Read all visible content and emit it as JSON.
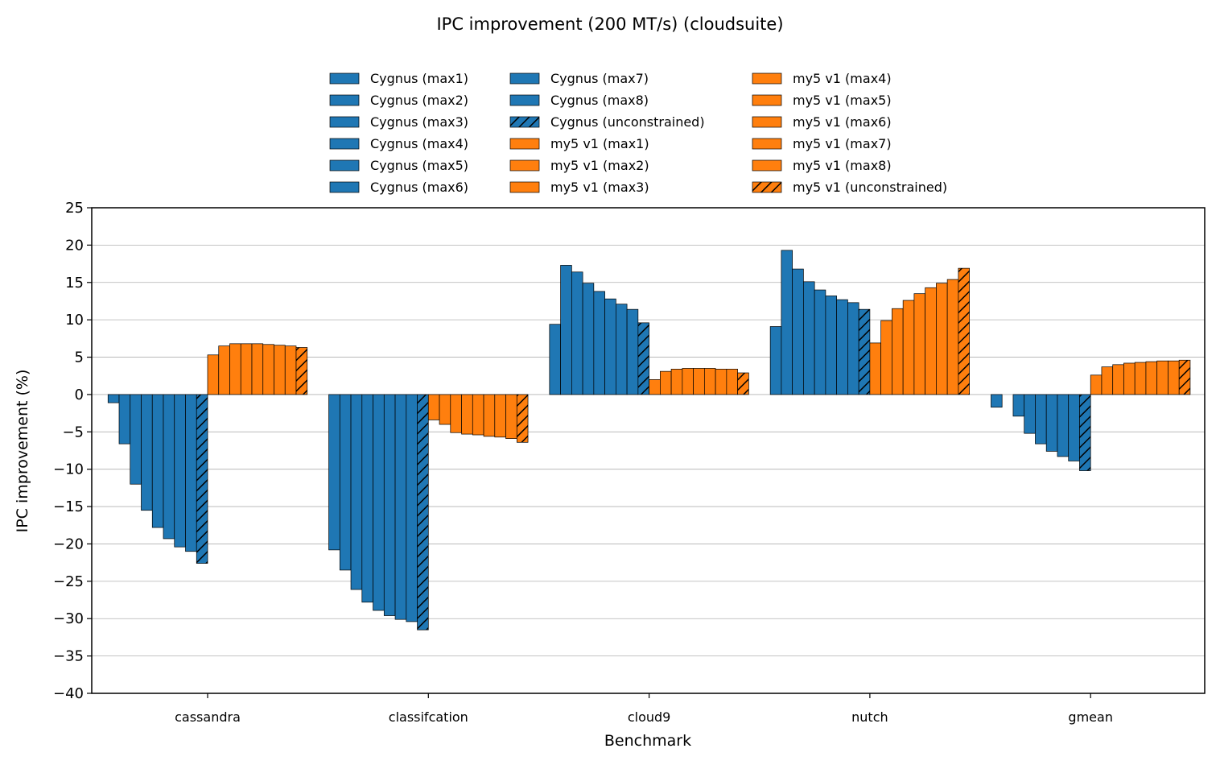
{
  "chart_data": {
    "type": "bar",
    "title": "IPC improvement (200 MT/s) (cloudsuite)",
    "xlabel": "Benchmark",
    "ylabel": "IPC improvement (%)",
    "ylim": [
      -40,
      25
    ],
    "yticks": [
      25,
      20,
      15,
      10,
      5,
      0,
      -5,
      -10,
      -15,
      -20,
      -25,
      -30,
      -35,
      -40
    ],
    "ytick_labels": [
      "25",
      "20",
      "15",
      "10",
      "5",
      "0",
      "−5",
      "−10",
      "−15",
      "−20",
      "−25",
      "−30",
      "−35",
      "−40"
    ],
    "grid": "horizontal",
    "legend_position": "top-center",
    "categories": [
      "cassandra",
      "classifcation",
      "cloud9",
      "nutch",
      "gmean"
    ],
    "colors": {
      "cygnus": "#1f77b4",
      "my5": "#ff7f0e"
    },
    "series": [
      {
        "name": "Cygnus (max1)",
        "group": "cygnus",
        "hatch": false,
        "values": [
          -1.1,
          -20.8,
          9.4,
          9.1,
          -1.7
        ]
      },
      {
        "name": "Cygnus (max2)",
        "group": "cygnus",
        "hatch": false,
        "values": [
          -6.6,
          -23.5,
          17.3,
          19.3,
          0.0
        ]
      },
      {
        "name": "Cygnus (max3)",
        "group": "cygnus",
        "hatch": false,
        "values": [
          -12.0,
          -26.1,
          16.4,
          16.8,
          -2.9
        ]
      },
      {
        "name": "Cygnus (max4)",
        "group": "cygnus",
        "hatch": false,
        "values": [
          -15.5,
          -27.8,
          14.9,
          15.1,
          -5.2
        ]
      },
      {
        "name": "Cygnus (max5)",
        "group": "cygnus",
        "hatch": false,
        "values": [
          -17.8,
          -28.9,
          13.8,
          14.0,
          -6.6
        ]
      },
      {
        "name": "Cygnus (max6)",
        "group": "cygnus",
        "hatch": false,
        "values": [
          -19.3,
          -29.6,
          12.8,
          13.2,
          -7.6
        ]
      },
      {
        "name": "Cygnus (max7)",
        "group": "cygnus",
        "hatch": false,
        "values": [
          -20.4,
          -30.1,
          12.1,
          12.7,
          -8.3
        ]
      },
      {
        "name": "Cygnus (max8)",
        "group": "cygnus",
        "hatch": false,
        "values": [
          -21.0,
          -30.4,
          11.4,
          12.3,
          -8.9
        ]
      },
      {
        "name": "Cygnus (unconstrained)",
        "group": "cygnus",
        "hatch": true,
        "values": [
          -22.6,
          -31.5,
          9.6,
          11.4,
          -10.2
        ]
      },
      {
        "name": "my5 v1 (max1)",
        "group": "my5",
        "hatch": false,
        "values": [
          5.3,
          -3.4,
          2.0,
          6.9,
          2.6
        ]
      },
      {
        "name": "my5 v1 (max2)",
        "group": "my5",
        "hatch": false,
        "values": [
          6.5,
          -4.0,
          3.1,
          9.9,
          3.7
        ]
      },
      {
        "name": "my5 v1 (max3)",
        "group": "my5",
        "hatch": false,
        "values": [
          6.8,
          -5.1,
          3.4,
          11.5,
          4.0
        ]
      },
      {
        "name": "my5 v1 (max4)",
        "group": "my5",
        "hatch": false,
        "values": [
          6.8,
          -5.3,
          3.5,
          12.6,
          4.2
        ]
      },
      {
        "name": "my5 v1 (max5)",
        "group": "my5",
        "hatch": false,
        "values": [
          6.8,
          -5.4,
          3.5,
          13.5,
          4.3
        ]
      },
      {
        "name": "my5 v1 (max6)",
        "group": "my5",
        "hatch": false,
        "values": [
          6.7,
          -5.6,
          3.5,
          14.3,
          4.4
        ]
      },
      {
        "name": "my5 v1 (max7)",
        "group": "my5",
        "hatch": false,
        "values": [
          6.6,
          -5.7,
          3.4,
          14.9,
          4.5
        ]
      },
      {
        "name": "my5 v1 (max8)",
        "group": "my5",
        "hatch": false,
        "values": [
          6.5,
          -5.9,
          3.4,
          15.4,
          4.5
        ]
      },
      {
        "name": "my5 v1 (unconstrained)",
        "group": "my5",
        "hatch": true,
        "values": [
          6.3,
          -6.4,
          2.9,
          16.9,
          4.6
        ]
      }
    ]
  }
}
